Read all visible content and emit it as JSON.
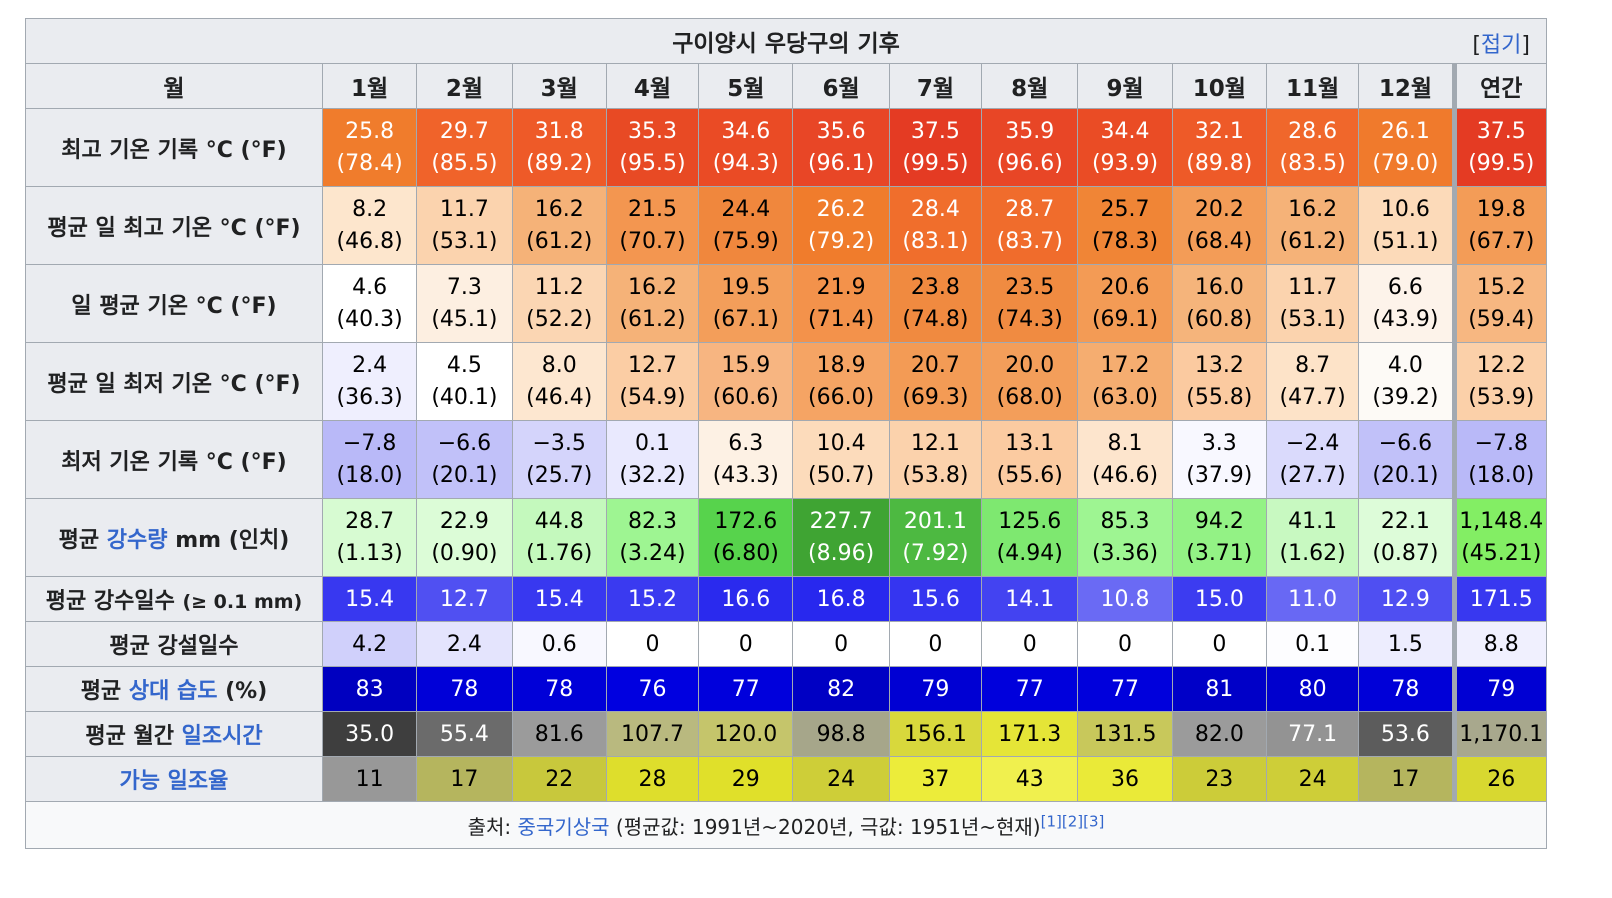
{
  "title": "구이양시 우당구의 기후",
  "toggle": {
    "open": "[",
    "label": "접기",
    "close": "]"
  },
  "months": [
    "월",
    "1월",
    "2월",
    "3월",
    "4월",
    "5월",
    "6월",
    "7월",
    "8월",
    "9월",
    "10월",
    "11월",
    "12월",
    "연간"
  ],
  "rows": {
    "record_high": {
      "label": "최고 기온 기록 °C (°F)",
      "c": [
        "25.8",
        "29.7",
        "31.8",
        "35.3",
        "34.6",
        "35.6",
        "37.5",
        "35.9",
        "34.4",
        "32.1",
        "28.6",
        "26.1",
        "37.5"
      ],
      "f": [
        "(78.4)",
        "(85.5)",
        "(89.2)",
        "(95.5)",
        "(94.3)",
        "(96.1)",
        "(99.5)",
        "(96.6)",
        "(93.9)",
        "(89.8)",
        "(83.5)",
        "(79.0)",
        "(99.5)"
      ],
      "bg": [
        "#f07c2c",
        "#f0632a",
        "#ee5a28",
        "#e84a24",
        "#ea4b25",
        "#e84626",
        "#e43b23",
        "#e84626",
        "#ea4c25",
        "#ee5a28",
        "#f0672b",
        "#f07a2c",
        "#e43b23"
      ]
    },
    "avg_high": {
      "label": "평균 일 최고 기온 °C (°F)",
      "c": [
        "8.2",
        "11.7",
        "16.2",
        "21.5",
        "24.4",
        "26.2",
        "28.4",
        "28.7",
        "25.7",
        "20.2",
        "16.2",
        "10.6",
        "19.8"
      ],
      "f": [
        "(46.8)",
        "(53.1)",
        "(61.2)",
        "(70.7)",
        "(75.9)",
        "(79.2)",
        "(83.1)",
        "(83.7)",
        "(78.3)",
        "(68.4)",
        "(61.2)",
        "(51.1)",
        "(67.7)"
      ],
      "bg": [
        "#fde6cd",
        "#fbd3ae",
        "#f5b278",
        "#f39650",
        "#f0873d",
        "#f07c2c",
        "#f06e2c",
        "#f06c2c",
        "#f08536",
        "#f39c57",
        "#f5b278",
        "#fcdab9",
        "#f39c57"
      ]
    },
    "mean": {
      "label": "일 평균 기온 °C (°F)",
      "c": [
        "4.6",
        "7.3",
        "11.2",
        "16.2",
        "19.5",
        "21.9",
        "23.8",
        "23.5",
        "20.6",
        "16.0",
        "11.7",
        "6.6",
        "15.2"
      ],
      "f": [
        "(40.3)",
        "(45.1)",
        "(52.2)",
        "(61.2)",
        "(67.1)",
        "(71.4)",
        "(74.8)",
        "(74.3)",
        "(69.1)",
        "(60.8)",
        "(53.1)",
        "(43.9)",
        "(59.4)"
      ],
      "bg": [
        "#ffffff",
        "#fdefe1",
        "#fbd6b3",
        "#f5b278",
        "#f39e5a",
        "#f3924b",
        "#f08a40",
        "#f08b41",
        "#f39b55",
        "#f5b47b",
        "#fbd3ae",
        "#fdf3ea",
        "#f7b781"
      ]
    },
    "avg_low": {
      "label": "평균 일 최저 기온 °C (°F)",
      "c": [
        "2.4",
        "4.5",
        "8.0",
        "12.7",
        "15.9",
        "18.9",
        "20.7",
        "20.0",
        "17.2",
        "13.2",
        "8.7",
        "4.0",
        "12.2"
      ],
      "f": [
        "(36.3)",
        "(40.1)",
        "(46.4)",
        "(54.9)",
        "(60.6)",
        "(66.0)",
        "(69.3)",
        "(68.0)",
        "(63.0)",
        "(55.8)",
        "(47.7)",
        "(39.2)",
        "(53.9)"
      ],
      "bg": [
        "#efeffe",
        "#ffffff",
        "#fde7d0",
        "#fbcda4",
        "#f7b581",
        "#f5a464",
        "#f39b55",
        "#f39e5a",
        "#f5ad70",
        "#fbcaa0",
        "#fde3c8",
        "#fdfaf6",
        "#fbd0a9"
      ]
    },
    "record_low": {
      "label": "최저 기온 기록 °C (°F)",
      "c": [
        "−7.8",
        "−6.6",
        "−3.5",
        "0.1",
        "6.3",
        "10.4",
        "12.1",
        "13.1",
        "8.1",
        "3.3",
        "−2.4",
        "−6.6",
        "−7.8"
      ],
      "f": [
        "(18.0)",
        "(20.1)",
        "(25.7)",
        "(32.2)",
        "(43.3)",
        "(50.7)",
        "(53.8)",
        "(55.6)",
        "(46.6)",
        "(37.9)",
        "(27.7)",
        "(20.1)",
        "(18.0)"
      ],
      "bg": [
        "#b9b9f8",
        "#c1c1f9",
        "#d4d4fb",
        "#e9e9fe",
        "#fdf1e4",
        "#fcdbbb",
        "#fbd2ac",
        "#fbcba1",
        "#fde5cd",
        "#f8f8ff",
        "#dadafc",
        "#c1c1f9",
        "#b9b9f8"
      ]
    },
    "precip": {
      "label_pre": "평균 ",
      "label_link": "강수량",
      "label_post": " mm (인치)",
      "c": [
        "28.7",
        "22.9",
        "44.8",
        "82.3",
        "172.6",
        "227.7",
        "201.1",
        "125.6",
        "85.3",
        "94.2",
        "41.1",
        "22.1",
        "1,148.4"
      ],
      "f": [
        "(1.13)",
        "(0.90)",
        "(1.76)",
        "(3.24)",
        "(6.80)",
        "(8.96)",
        "(7.92)",
        "(4.94)",
        "(3.36)",
        "(3.71)",
        "(1.62)",
        "(0.87)",
        "(45.21)"
      ],
      "bg": [
        "#d7fbd2",
        "#dcfcd7",
        "#c4f9bd",
        "#9ef592",
        "#57d34c",
        "#3fa433",
        "#4db941",
        "#7ee870",
        "#9ef592",
        "#93f285",
        "#c8f9c1",
        "#ddfcd9",
        "#83ee64"
      ]
    },
    "precip_days": {
      "label_main": "평균 강수일수 ",
      "label_small": "(≥ 0.1 mm)",
      "v": [
        "15.4",
        "12.7",
        "15.4",
        "15.2",
        "16.6",
        "16.8",
        "15.6",
        "14.1",
        "10.8",
        "15.0",
        "11.0",
        "12.9",
        "171.5"
      ],
      "bg": [
        "#3838f0",
        "#5050f2",
        "#3838f0",
        "#3a3af0",
        "#2a2aee",
        "#2828ee",
        "#3535f0",
        "#4343f1",
        "#6a6af4",
        "#3c3cf0",
        "#6868f4",
        "#4f4ff2",
        "#3838f0"
      ]
    },
    "snow_days": {
      "label": "평균 강설일수",
      "v": [
        "4.2",
        "2.4",
        "0.6",
        "0",
        "0",
        "0",
        "0",
        "0",
        "0",
        "0",
        "0.1",
        "1.5",
        "8.8"
      ],
      "bg": [
        "#d0d0fb",
        "#e4e4fd",
        "#f8f8ff",
        "#ffffff",
        "#ffffff",
        "#ffffff",
        "#ffffff",
        "#ffffff",
        "#ffffff",
        "#ffffff",
        "#fdfdff",
        "#ededfe",
        "#f0f0fe"
      ]
    },
    "humidity": {
      "label_pre": "평균 ",
      "label_link": "상대 습도",
      "label_post": " (%)",
      "v": [
        "83",
        "78",
        "78",
        "76",
        "77",
        "82",
        "79",
        "77",
        "77",
        "81",
        "80",
        "78",
        "79"
      ],
      "bg": [
        "#0000c0",
        "#0000d8",
        "#0000d8",
        "#0000e0",
        "#0000dc",
        "#0000c4",
        "#0000d3",
        "#0000dc",
        "#0000dc",
        "#0000c8",
        "#0000cd",
        "#0000d8",
        "#0000d3"
      ]
    },
    "sunshine": {
      "label_pre": "평균 월간 ",
      "label_link": "일조시간",
      "v": [
        "35.0",
        "55.4",
        "81.6",
        "107.7",
        "120.0",
        "98.8",
        "156.1",
        "171.3",
        "131.5",
        "82.0",
        "77.1",
        "53.6",
        "1,170.1"
      ],
      "bg": [
        "#3e3e3e",
        "#6b6b6b",
        "#9b9b9b",
        "#b9b97f",
        "#c5c56b",
        "#a6a68a",
        "#d8d83c",
        "#e5e537",
        "#c8c85b",
        "#9b9b9b",
        "#939393",
        "#5c5c5c",
        "#a8a88d"
      ]
    },
    "possible_sunshine": {
      "label_link": "가능 일조율",
      "v": [
        "11",
        "17",
        "22",
        "28",
        "29",
        "24",
        "37",
        "43",
        "36",
        "23",
        "24",
        "17",
        "26"
      ],
      "bg": [
        "#989898",
        "#b5b55e",
        "#c8c83c",
        "#dede2c",
        "#e0e02a",
        "#cece38",
        "#ecec3a",
        "#f0f04e",
        "#eaea38",
        "#cccc39",
        "#cece38",
        "#b5b55e",
        "#d8d830"
      ]
    }
  },
  "source": {
    "pre": "출처: ",
    "link": "중국기상국",
    "post": " (평균값: 1991년~2020년, 극값: 1951년~현재)",
    "refs": "[1][2][3]"
  }
}
